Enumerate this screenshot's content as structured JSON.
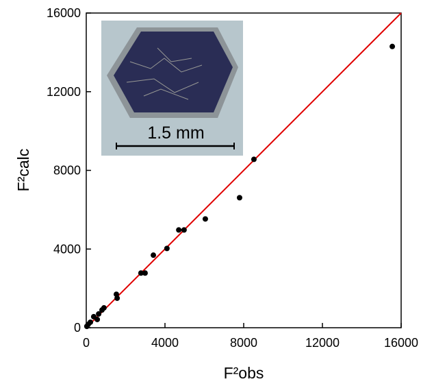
{
  "chart_data": {
    "type": "scatter",
    "xlabel": "F²obs",
    "ylabel": "F²calc",
    "annotation": "1.5 mm",
    "x": [
      15550,
      8520,
      7790,
      6050,
      4970,
      4700,
      4100,
      3410,
      2990,
      2780,
      1530,
      1570,
      900,
      800,
      630,
      560,
      380,
      210,
      100,
      30
    ],
    "y": [
      14300,
      8560,
      6610,
      5530,
      4970,
      4970,
      4030,
      3690,
      2780,
      2780,
      1700,
      1500,
      1010,
      900,
      700,
      420,
      560,
      280,
      170,
      70
    ],
    "color": "#000000",
    "fit_line": {
      "x": [
        0,
        16000
      ],
      "y": [
        0,
        16000
      ],
      "color": "#e00000"
    },
    "xlim": [
      0,
      16000
    ],
    "ylim": [
      0,
      16000
    ],
    "xticks": [
      0,
      4000,
      8000,
      12000,
      16000
    ],
    "yticks": [
      0,
      4000,
      8000,
      12000,
      16000
    ]
  }
}
